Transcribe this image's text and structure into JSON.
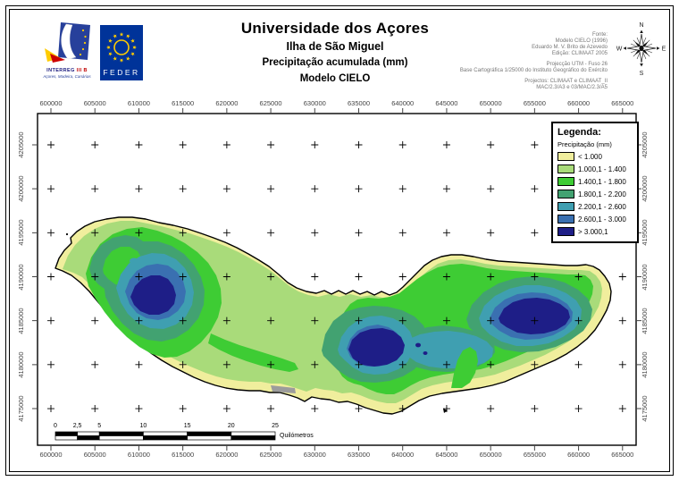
{
  "header": {
    "title": "Universidade dos Açores",
    "subtitle1": "Ilha de São Miguel",
    "subtitle2": "Precipitação acumulada (mm)",
    "subtitle3": "Modelo CIELO",
    "credits_blocks": [
      [
        "Fonte:",
        "Modelo CIELO (1996)",
        "Eduardo M. V. Brito de Azevedo",
        "Edição: CLIMAAT 2005"
      ],
      [
        "Projecção UTM - Fuso 26",
        "Base Cartográfica 1/25000 do Instituto Geográfico do Exército"
      ],
      [
        "Projectos: CLIMAAT e CLIMAAT_II",
        "MAC/2.3/A3 e 03/MAC/2.3/A5"
      ]
    ],
    "logos": {
      "interreg": {
        "name_a": "INTERREG",
        "name_b": "III B",
        "subtitle": "Açores, Madeira, Canárias",
        "blue": "#27409b",
        "yellow": "#ffcc00",
        "red": "#cc0000"
      },
      "feder": {
        "label": "FEDER",
        "blue": "#003399",
        "star_yellow": "#ffcc00"
      }
    },
    "compass": {
      "n": "N",
      "e": "E",
      "s": "S",
      "w": "W"
    }
  },
  "legend": {
    "title": "Legenda:",
    "subtitle": "Precipitação (mm)",
    "items": [
      {
        "label": "< 1.000",
        "color": "#f0ee9d"
      },
      {
        "label": "1.000,1 - 1.400",
        "color": "#a9db7a"
      },
      {
        "label": "1.400,1 - 1.800",
        "color": "#3ecc34"
      },
      {
        "label": "1.800,1 - 2.200",
        "color": "#42a271"
      },
      {
        "label": "2.200,1 - 2.600",
        "color": "#3f9fb1"
      },
      {
        "label": "2.600,1 - 3.000",
        "color": "#3a70b1"
      },
      {
        "label": "> 3.000,1",
        "color": "#1e1e87"
      }
    ]
  },
  "axes": {
    "x_labels": [
      "600000",
      "605000",
      "610000",
      "615000",
      "620000",
      "625000",
      "630000",
      "635000",
      "640000",
      "645000",
      "650000",
      "655000",
      "660000",
      "665000"
    ],
    "y_labels": [
      "4205000",
      "4200000",
      "4195000",
      "4190000",
      "4185000",
      "4180000",
      "4175000"
    ]
  },
  "scalebar": {
    "labels": [
      "0",
      "2,5",
      "5",
      "10",
      "15",
      "20",
      "25"
    ],
    "km": [
      0,
      2.5,
      5,
      10,
      15,
      20,
      25
    ],
    "unit": "Quilómetros"
  },
  "map": {
    "gray_area_color": "#9c9c9c",
    "outline_color": "#000000"
  }
}
